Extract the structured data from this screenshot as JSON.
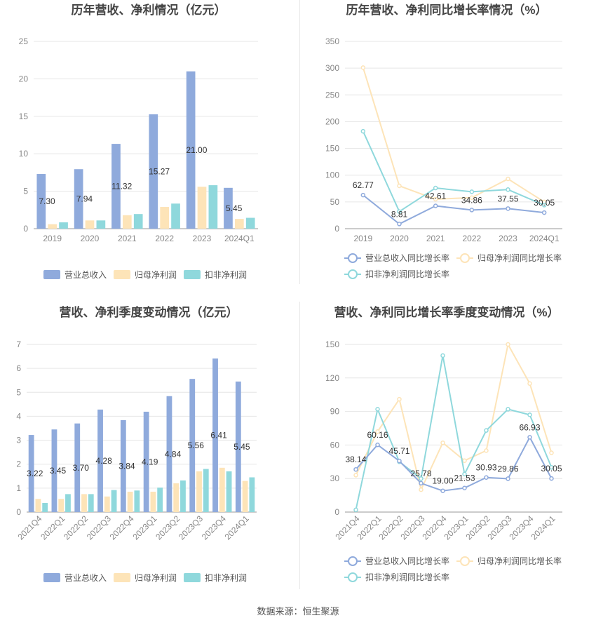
{
  "source_label": "数据来源：恒生聚源",
  "colors": {
    "revenue": "#8faadc",
    "parent_profit": "#fde4b8",
    "deducted_profit": "#8fd8dc",
    "grid": "#e6e6e6",
    "axis_text": "#888888"
  },
  "chart_data": [
    {
      "type": "bar",
      "title": "历年营收、净利情况（亿元）",
      "categories": [
        "2019",
        "2020",
        "2021",
        "2022",
        "2023",
        "2024Q1"
      ],
      "ylim": [
        0,
        25
      ],
      "yticks": [
        0,
        5,
        10,
        15,
        20,
        25
      ],
      "legend_position": "bottom",
      "series": [
        {
          "name": "营业总收入",
          "values": [
            7.3,
            7.94,
            11.32,
            15.27,
            21.0,
            5.45
          ],
          "labels": [
            "7.30",
            "7.94",
            "11.32",
            "15.27",
            "21.00",
            "5.45"
          ]
        },
        {
          "name": "归母净利润",
          "values": [
            0.6,
            1.1,
            1.8,
            2.9,
            5.6,
            1.3
          ]
        },
        {
          "name": "扣非净利润",
          "values": [
            0.85,
            1.1,
            1.95,
            3.35,
            5.8,
            1.45
          ]
        }
      ]
    },
    {
      "type": "line",
      "title": "历年营收、净利同比增长率情况（%）",
      "categories": [
        "2019",
        "2020",
        "2021",
        "2022",
        "2023",
        "2024Q1"
      ],
      "ylim": [
        0,
        350
      ],
      "yticks": [
        0,
        50,
        100,
        150,
        200,
        250,
        300,
        350
      ],
      "legend_position": "bottom",
      "series": [
        {
          "name": "营业总收入同比增长率",
          "values": [
            62.77,
            8.81,
            42.61,
            34.86,
            37.55,
            30.05
          ],
          "labels": [
            "62.77",
            "8.81",
            "42.61",
            "34.86",
            "37.55",
            "30.05"
          ]
        },
        {
          "name": "归母净利润同比增长率",
          "values": [
            301,
            80,
            55,
            58,
            93,
            50
          ]
        },
        {
          "name": "扣非净利润同比增长率",
          "values": [
            182,
            32,
            76,
            69,
            73,
            44
          ]
        }
      ]
    },
    {
      "type": "bar",
      "title": "营收、净利季度变动情况（亿元）",
      "categories": [
        "2021Q4",
        "2022Q1",
        "2022Q2",
        "2022Q3",
        "2022Q4",
        "2023Q1",
        "2023Q2",
        "2023Q3",
        "2023Q4",
        "2024Q1"
      ],
      "ylim": [
        0,
        7
      ],
      "yticks": [
        0,
        1,
        2,
        3,
        4,
        5,
        6,
        7
      ],
      "legend_position": "bottom",
      "series": [
        {
          "name": "营业总收入",
          "values": [
            3.22,
            3.45,
            3.7,
            4.28,
            3.84,
            4.19,
            4.84,
            5.56,
            6.41,
            5.45
          ],
          "labels": [
            "3.22",
            "3.45",
            "3.70",
            "4.28",
            "3.84",
            "4.19",
            "4.84",
            "5.56",
            "6.41",
            "5.45"
          ]
        },
        {
          "name": "归母净利润",
          "values": [
            0.55,
            0.55,
            0.75,
            0.65,
            0.85,
            0.85,
            1.2,
            1.7,
            1.85,
            1.3
          ]
        },
        {
          "name": "扣非净利润",
          "values": [
            0.38,
            0.75,
            0.75,
            0.92,
            0.9,
            1.02,
            1.32,
            1.8,
            1.7,
            1.45
          ]
        }
      ]
    },
    {
      "type": "line",
      "title": "营收、净利同比增长率季度变动情况（%）",
      "categories": [
        "2021Q4",
        "2022Q1",
        "2022Q2",
        "2022Q3",
        "2022Q4",
        "2023Q1",
        "2023Q2",
        "2023Q3",
        "2023Q4",
        "2024Q1"
      ],
      "ylim": [
        0,
        150
      ],
      "yticks": [
        0,
        30,
        60,
        90,
        120,
        150
      ],
      "legend_position": "bottom",
      "series": [
        {
          "name": "营业总收入同比增长率",
          "values": [
            38.14,
            60.16,
            45.71,
            25.78,
            19.0,
            21.53,
            30.93,
            29.86,
            66.93,
            30.05
          ],
          "labels": [
            "38.14",
            "60.16",
            "45.71",
            "25.78",
            "19.00",
            "21.53",
            "30.93",
            "29.86",
            "66.93",
            "30.05"
          ]
        },
        {
          "name": "归母净利润同比增长率",
          "values": [
            33,
            72,
            101,
            20,
            62,
            46,
            55,
            150,
            115,
            53
          ]
        },
        {
          "name": "扣非净利润同比增长率",
          "values": [
            2,
            92,
            45,
            30,
            140,
            34,
            73,
            92,
            87,
            40
          ]
        }
      ]
    }
  ]
}
